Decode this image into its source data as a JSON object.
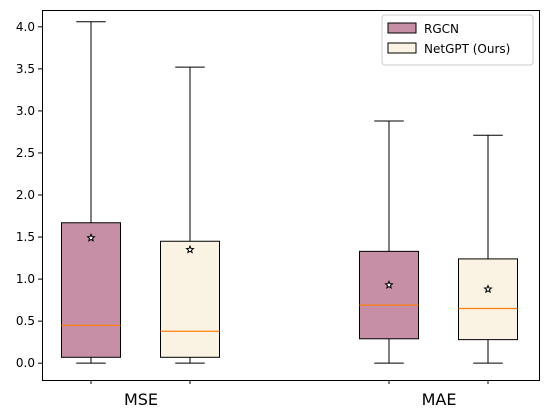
{
  "chart_data": {
    "type": "boxplot",
    "categories": [
      "MSE",
      "MAE"
    ],
    "ylim": [
      -0.2,
      4.2
    ],
    "yticks": [
      "0.0",
      "0.5",
      "1.0",
      "1.5",
      "2.0",
      "2.5",
      "3.0",
      "3.5",
      "4.0"
    ],
    "grid": false,
    "legend_position": "top-right",
    "median_color": "#ff7f0e",
    "series": [
      {
        "name": "RGCN",
        "color": "#c68fa6",
        "boxes": [
          {
            "category": "MSE",
            "whisker_low": 0.0,
            "q1": 0.07,
            "median": 0.45,
            "q3": 1.67,
            "whisker_high": 4.06,
            "mean": 1.49
          },
          {
            "category": "MAE",
            "whisker_low": 0.0,
            "q1": 0.29,
            "median": 0.69,
            "q3": 1.33,
            "whisker_high": 2.88,
            "mean": 0.93
          }
        ]
      },
      {
        "name": "NetGPT (Ours)",
        "color": "#faf3e3",
        "boxes": [
          {
            "category": "MSE",
            "whisker_low": 0.0,
            "q1": 0.07,
            "median": 0.38,
            "q3": 1.45,
            "whisker_high": 3.52,
            "mean": 1.35
          },
          {
            "category": "MAE",
            "whisker_low": 0.0,
            "q1": 0.28,
            "median": 0.65,
            "q3": 1.24,
            "whisker_high": 2.71,
            "mean": 0.88
          }
        ]
      }
    ]
  }
}
